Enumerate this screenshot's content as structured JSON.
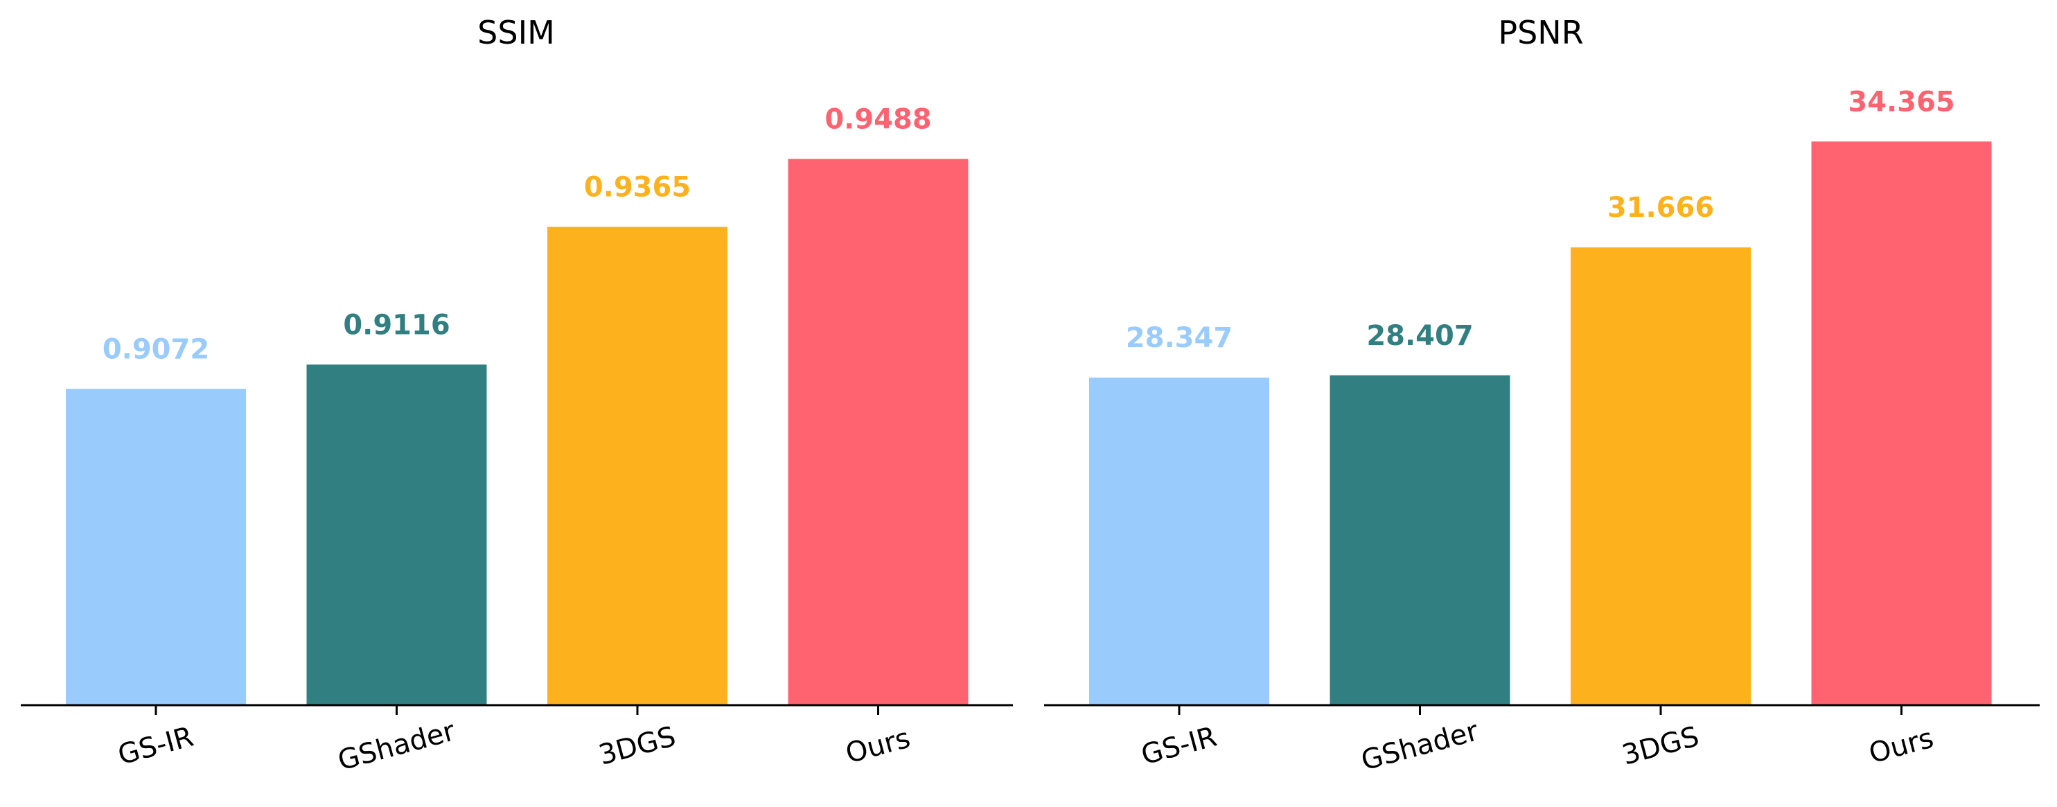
{
  "chart_data": [
    {
      "type": "bar",
      "title": "SSIM",
      "categories": [
        "GS-IR",
        "GShader",
        "3DGS",
        "Ours"
      ],
      "values": [
        0.9072,
        0.9116,
        0.9365,
        0.9488
      ],
      "value_labels": [
        "0.9072",
        "0.9116",
        "0.9365",
        "0.9488"
      ],
      "colors": [
        "#99CBFD",
        "#317F81",
        "#FDB21D",
        "#FF6370"
      ],
      "xlabel": "",
      "ylabel": "",
      "ylim": [
        0.85,
        0.96
      ],
      "grid": false,
      "legend": "none",
      "y_axis_visible": false,
      "tick_rotation_deg": 15
    },
    {
      "type": "bar",
      "title": "PSNR",
      "categories": [
        "GS-IR",
        "GShader",
        "3DGS",
        "Ours"
      ],
      "values": [
        28.347,
        28.407,
        31.666,
        34.365
      ],
      "value_labels": [
        "28.347",
        "28.407",
        "31.666",
        "34.365"
      ],
      "colors": [
        "#99CBFD",
        "#317F81",
        "#FDB21D",
        "#FF6370"
      ],
      "xlabel": "",
      "ylabel": "",
      "ylim": [
        20,
        35.5
      ],
      "grid": false,
      "legend": "none",
      "y_axis_visible": false,
      "tick_rotation_deg": 15
    }
  ]
}
